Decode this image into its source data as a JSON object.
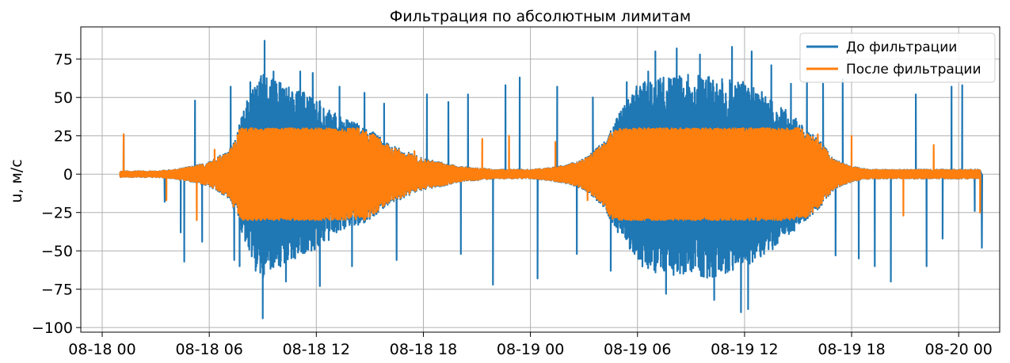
{
  "chart_data": {
    "type": "line",
    "title": "Фильтрация по абсолютным лимитам",
    "xlabel": "",
    "ylabel": "u, м/с",
    "x_ticks": [
      "08-18 00",
      "08-18 06",
      "08-18 12",
      "08-18 18",
      "08-19 00",
      "08-19 06",
      "08-19 12",
      "08-19 18",
      "08-20 00"
    ],
    "x_range_hours": [
      -1.2,
      50.3
    ],
    "y_ticks": [
      75,
      50,
      25,
      0,
      -25,
      -50,
      -75,
      -100
    ],
    "y_tick_labels": [
      "75",
      "50",
      "25",
      "0",
      "−25",
      "−50",
      "−75",
      "−100"
    ],
    "ylim": [
      -103,
      96
    ],
    "grid": true,
    "legend_position": "top-right",
    "series": [
      {
        "name": "До фильтрации",
        "color": "#1f77b4",
        "envelope_hours": [
          1,
          3,
          4,
          5,
          6,
          7,
          7.5,
          8,
          8.5,
          9,
          9.5,
          10,
          11,
          12,
          13,
          14,
          15,
          16,
          17,
          18,
          19,
          20,
          21,
          22,
          23,
          24,
          25,
          26,
          27,
          28,
          29,
          30,
          31,
          32,
          33,
          34,
          35,
          36,
          37,
          38,
          39,
          40,
          41,
          42,
          43,
          44,
          45,
          46,
          47,
          48,
          49
        ],
        "envelope_max": [
          2,
          2,
          3,
          5,
          8,
          15,
          25,
          45,
          60,
          65,
          63,
          60,
          55,
          50,
          40,
          35,
          30,
          20,
          15,
          10,
          8,
          5,
          4,
          3,
          3,
          3,
          4,
          6,
          10,
          20,
          40,
          60,
          63,
          64,
          65,
          65,
          63,
          60,
          55,
          45,
          35,
          25,
          10,
          5,
          3,
          3,
          3,
          3,
          3,
          3,
          3
        ],
        "envelope_min": [
          -2,
          -2,
          -3,
          -5,
          -8,
          -15,
          -25,
          -45,
          -60,
          -68,
          -65,
          -60,
          -55,
          -50,
          -40,
          -35,
          -30,
          -20,
          -15,
          -10,
          -8,
          -5,
          -4,
          -3,
          -3,
          -3,
          -4,
          -6,
          -10,
          -20,
          -40,
          -60,
          -65,
          -66,
          -65,
          -68,
          -65,
          -60,
          -55,
          -45,
          -35,
          -25,
          -10,
          -5,
          -3,
          -3,
          -3,
          -3,
          -3,
          -3,
          -3
        ],
        "spikes": [
          {
            "t": 1.2,
            "y": 26
          },
          {
            "t": 3.5,
            "y": -18
          },
          {
            "t": 4.4,
            "y": -38
          },
          {
            "t": 4.6,
            "y": -57
          },
          {
            "t": 5.2,
            "y": 48
          },
          {
            "t": 5.6,
            "y": -44
          },
          {
            "t": 7.2,
            "y": 57
          },
          {
            "t": 7.4,
            "y": -56
          },
          {
            "t": 7.7,
            "y": -60
          },
          {
            "t": 8.3,
            "y": 60
          },
          {
            "t": 8.6,
            "y": -63
          },
          {
            "t": 8.9,
            "y": 64
          },
          {
            "t": 9.1,
            "y": 87
          },
          {
            "t": 9.0,
            "y": -94
          },
          {
            "t": 9.6,
            "y": 67
          },
          {
            "t": 10.3,
            "y": -70
          },
          {
            "t": 11.1,
            "y": 67
          },
          {
            "t": 11.8,
            "y": 66
          },
          {
            "t": 12.2,
            "y": -73
          },
          {
            "t": 13.3,
            "y": 57
          },
          {
            "t": 14.0,
            "y": -60
          },
          {
            "t": 14.7,
            "y": 53
          },
          {
            "t": 15.8,
            "y": 46
          },
          {
            "t": 16.5,
            "y": -56
          },
          {
            "t": 18.2,
            "y": 52
          },
          {
            "t": 19.4,
            "y": 47
          },
          {
            "t": 20.5,
            "y": 52
          },
          {
            "t": 20.1,
            "y": -52
          },
          {
            "t": 21.9,
            "y": -72
          },
          {
            "t": 22.6,
            "y": 58
          },
          {
            "t": 23.4,
            "y": 63
          },
          {
            "t": 24.4,
            "y": -68
          },
          {
            "t": 25.5,
            "y": 57
          },
          {
            "t": 26.6,
            "y": -52
          },
          {
            "t": 27.5,
            "y": 50
          },
          {
            "t": 28.5,
            "y": -63
          },
          {
            "t": 29.4,
            "y": 60
          },
          {
            "t": 30.6,
            "y": 67
          },
          {
            "t": 31.0,
            "y": 80
          },
          {
            "t": 31.6,
            "y": -78
          },
          {
            "t": 32.2,
            "y": 82
          },
          {
            "t": 33.5,
            "y": 78
          },
          {
            "t": 34.3,
            "y": -82
          },
          {
            "t": 35.3,
            "y": 83
          },
          {
            "t": 35.8,
            "y": -90
          },
          {
            "t": 36.4,
            "y": 80
          },
          {
            "t": 36.2,
            "y": -88
          },
          {
            "t": 37.5,
            "y": 71
          },
          {
            "t": 38.6,
            "y": 59
          },
          {
            "t": 39.5,
            "y": 60
          },
          {
            "t": 40.4,
            "y": 59
          },
          {
            "t": 41.1,
            "y": -53
          },
          {
            "t": 41.5,
            "y": 62
          },
          {
            "t": 42.4,
            "y": -55
          },
          {
            "t": 43.3,
            "y": -60
          },
          {
            "t": 44.2,
            "y": -70
          },
          {
            "t": 45.6,
            "y": 52
          },
          {
            "t": 46.2,
            "y": -60
          },
          {
            "t": 47.1,
            "y": -42
          },
          {
            "t": 47.6,
            "y": 57
          },
          {
            "t": 48.2,
            "y": 58
          },
          {
            "t": 49.3,
            "y": -48
          },
          {
            "t": 48.9,
            "y": -24
          }
        ]
      },
      {
        "name": "После фильтрации",
        "color": "#ff7f0e",
        "clip_limit": 30,
        "spikes": [
          {
            "t": 1.2,
            "y": 26
          },
          {
            "t": 3.6,
            "y": -17
          },
          {
            "t": 5.3,
            "y": -30
          },
          {
            "t": 6.3,
            "y": 16
          },
          {
            "t": 17.5,
            "y": 15
          },
          {
            "t": 21.3,
            "y": 23
          },
          {
            "t": 22.8,
            "y": 25
          },
          {
            "t": 25.4,
            "y": 21
          },
          {
            "t": 27.2,
            "y": -17
          },
          {
            "t": 40.1,
            "y": 26
          },
          {
            "t": 42.0,
            "y": 25
          },
          {
            "t": 44.9,
            "y": -27
          },
          {
            "t": 46.6,
            "y": 19
          },
          {
            "t": 49.2,
            "y": -25
          }
        ]
      }
    ]
  }
}
